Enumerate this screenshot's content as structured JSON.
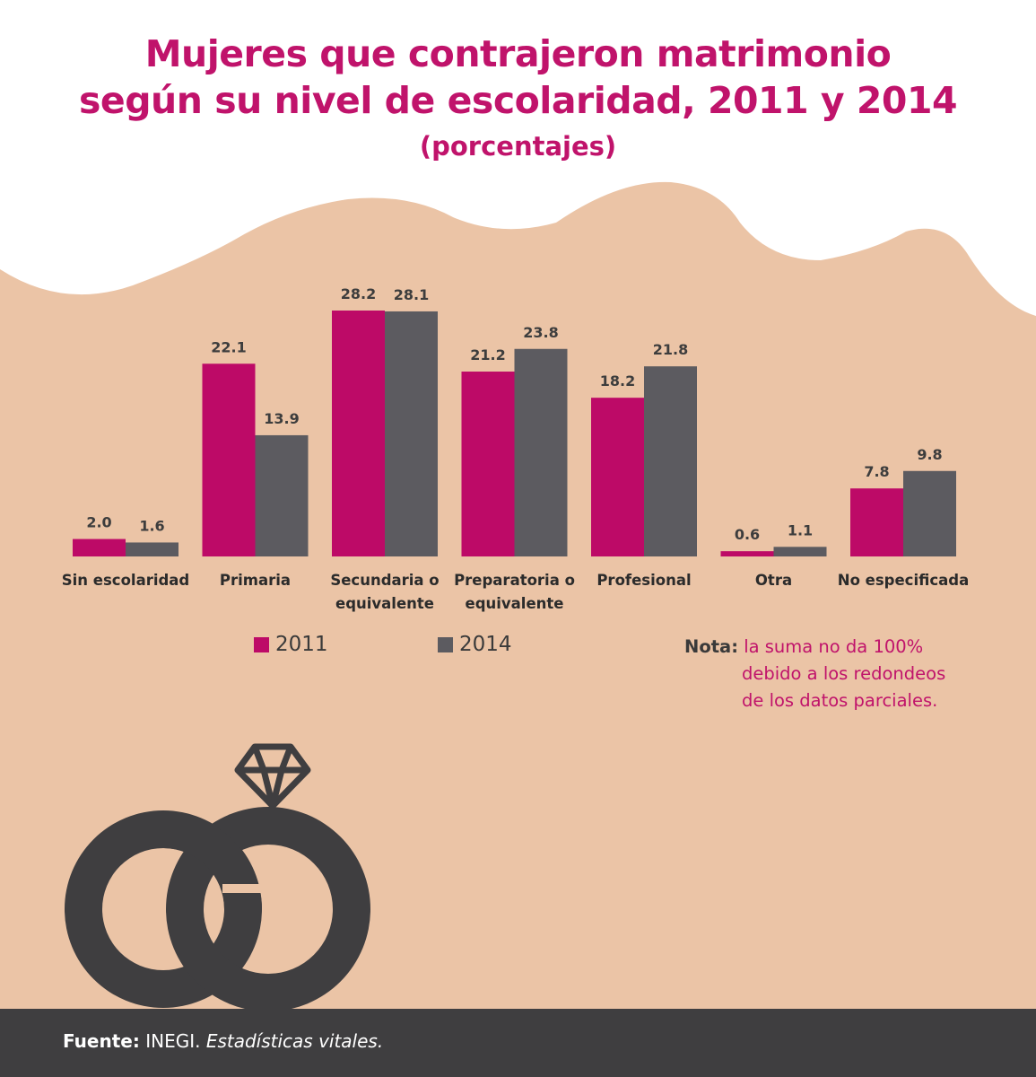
{
  "title_line1": "Mujeres que contrajeron matrimonio",
  "title_line2": "según su nivel de escolaridad, 2011 y 2014",
  "title_line3": "(porcentajes)",
  "colors": {
    "s2011": "#bd0a67",
    "s2014": "#5c5b60",
    "background": "#ebc4a6",
    "footer": "#3f3e40",
    "title": "#c0136b"
  },
  "chart_data": {
    "type": "bar",
    "title": "Mujeres que contrajeron matrimonio según su nivel de escolaridad, 2011 y 2014 (porcentajes)",
    "categories": [
      [
        "Sin escolaridad"
      ],
      [
        "Primaria"
      ],
      [
        "Secundaria o",
        "equivalente"
      ],
      [
        "Preparatoria o",
        "equivalente"
      ],
      [
        "Profesional"
      ],
      [
        "Otra"
      ],
      [
        "No especificada"
      ]
    ],
    "series": [
      {
        "name": "2011",
        "values": [
          2.0,
          22.1,
          28.2,
          21.2,
          18.2,
          0.6,
          7.8
        ],
        "labels": [
          "2.0",
          "22.1",
          "28.2",
          "21.2",
          "18.2",
          "0.6",
          "7.8"
        ]
      },
      {
        "name": "2014",
        "values": [
          1.6,
          13.9,
          28.1,
          23.8,
          21.8,
          1.1,
          9.8
        ],
        "labels": [
          "1.6",
          "13.9",
          "28.1",
          "23.8",
          "21.8",
          "1.1",
          "9.8"
        ]
      }
    ],
    "ylim": [
      0,
      28.2
    ],
    "xlabel": "",
    "ylabel": ""
  },
  "legend": {
    "item_2011": "2011",
    "item_2014": "2014"
  },
  "note": {
    "label": "Nota:",
    "line1": "la suma no da 100%",
    "line2": "debido a los redondeos",
    "line3": "de los datos parciales."
  },
  "footer": {
    "label": "Fuente:",
    "source": "INEGI.",
    "publication": "Estadísticas vitales."
  }
}
